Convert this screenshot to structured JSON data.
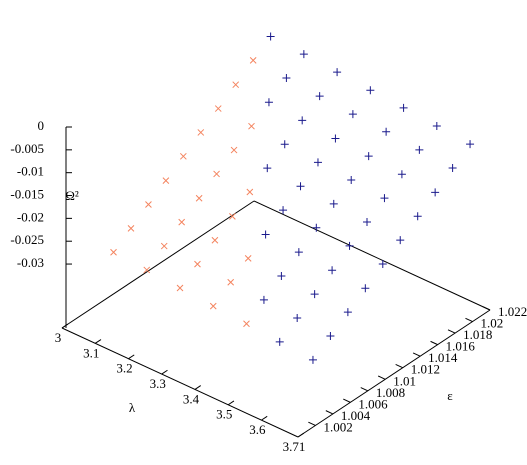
{
  "chart_data": {
    "type": "scatter3d",
    "xlabel": "λ",
    "ylabel": "ε",
    "zlabel": "Ω²",
    "xlim": [
      3,
      3.71
    ],
    "xticks": [
      3,
      3.1,
      3.2,
      3.3,
      3.4,
      3.5,
      3.6,
      3.71
    ],
    "ylim": [
      1,
      1.022
    ],
    "yticks": [
      1.002,
      1.004,
      1.006,
      1.008,
      1.01,
      1.012,
      1.014,
      1.016,
      1.018,
      1.02,
      1.022
    ],
    "zlim": [
      -0.044,
      0
    ],
    "zticks": [
      0,
      -0.005,
      -0.01,
      -0.015,
      -0.02,
      -0.025,
      -0.03
    ],
    "series": [
      {
        "color": "#f4845f",
        "marker": "x",
        "x": [
          3.05,
          3.05,
          3.05,
          3.05,
          3.05,
          3.05,
          3.05,
          3.05,
          3.05,
          3.15,
          3.15,
          3.15,
          3.15,
          3.15,
          3.15,
          3.15,
          3.25,
          3.25,
          3.25,
          3.25,
          3.25,
          3.35,
          3.35,
          3.35,
          3.45
        ],
        "y": [
          1.004,
          1.006,
          1.008,
          1.01,
          1.012,
          1.014,
          1.016,
          1.018,
          1.02,
          1.004,
          1.006,
          1.008,
          1.01,
          1.012,
          1.014,
          1.016,
          1.004,
          1.006,
          1.008,
          1.01,
          1.012,
          1.004,
          1.006,
          1.008,
          1.004
        ],
        "z": [
          -0.0308,
          -0.0281,
          -0.0254,
          -0.0227,
          -0.0199,
          -0.0172,
          -0.0145,
          -0.0118,
          -0.009,
          -0.0313,
          -0.0286,
          -0.0259,
          -0.0232,
          -0.0204,
          -0.0177,
          -0.015,
          -0.0319,
          -0.0292,
          -0.0265,
          -0.0238,
          -0.021,
          -0.0325,
          -0.0298,
          -0.0271,
          -0.033
        ]
      },
      {
        "color": "#1a1a8c",
        "marker": "+",
        "x": [
          3.05,
          3.15,
          3.15,
          3.15,
          3.25,
          3.25,
          3.25,
          3.25,
          3.25,
          3.35,
          3.35,
          3.35,
          3.35,
          3.35,
          3.35,
          3.35,
          3.45,
          3.45,
          3.45,
          3.45,
          3.45,
          3.45,
          3.45,
          3.45,
          3.45,
          3.55,
          3.55,
          3.55,
          3.55,
          3.55,
          3.55,
          3.55,
          3.55,
          3.55,
          3.55,
          3.65,
          3.65,
          3.65,
          3.65,
          3.65,
          3.65,
          3.65,
          3.65,
          3.65,
          3.65
        ],
        "y": [
          1.022,
          1.018,
          1.02,
          1.022,
          1.014,
          1.016,
          1.018,
          1.02,
          1.022,
          1.01,
          1.012,
          1.014,
          1.016,
          1.018,
          1.02,
          1.022,
          1.006,
          1.008,
          1.01,
          1.012,
          1.014,
          1.016,
          1.018,
          1.02,
          1.022,
          1.004,
          1.006,
          1.008,
          1.01,
          1.012,
          1.014,
          1.016,
          1.018,
          1.02,
          1.022,
          1.004,
          1.006,
          1.008,
          1.01,
          1.012,
          1.014,
          1.016,
          1.018,
          1.02,
          1.022
        ],
        "z": [
          -0.0063,
          -0.0123,
          -0.0095,
          -0.0068,
          -0.0183,
          -0.0156,
          -0.0129,
          -0.0101,
          -0.0074,
          -0.0244,
          -0.0216,
          -0.0189,
          -0.0162,
          -0.0135,
          -0.0107,
          -0.008,
          -0.0303,
          -0.0276,
          -0.0249,
          -0.0221,
          -0.0194,
          -0.0167,
          -0.014,
          -0.0112,
          -0.0085,
          -0.0336,
          -0.0309,
          -0.0282,
          -0.0255,
          -0.0227,
          -0.02,
          -0.0173,
          -0.0146,
          -0.0118,
          -0.0091,
          -0.0342,
          -0.0315,
          -0.0288,
          -0.0261,
          -0.0233,
          -0.0206,
          -0.0179,
          -0.0152,
          -0.0124,
          -0.0097
        ]
      }
    ]
  }
}
